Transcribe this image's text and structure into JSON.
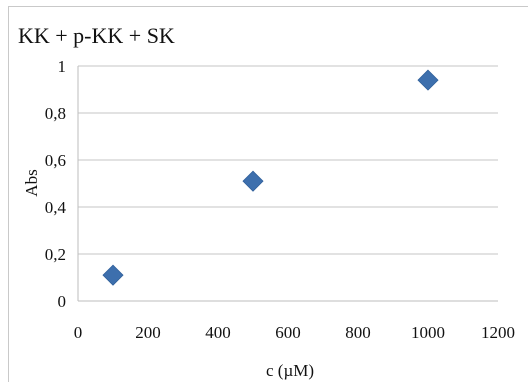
{
  "chart_data": {
    "type": "scatter",
    "title": "KK + p-KK + SK",
    "xlabel": "c (µM)",
    "ylabel": "Abs",
    "xlim": [
      0,
      1200
    ],
    "ylim": [
      0,
      1
    ],
    "xticks": [
      0,
      200,
      400,
      600,
      800,
      1000,
      1200
    ],
    "yticks": [
      0,
      0.2,
      0.4,
      0.6,
      0.8,
      1
    ],
    "xtick_labels": [
      "0",
      "200",
      "400",
      "600",
      "800",
      "1000",
      "1200"
    ],
    "ytick_labels": [
      "0",
      "0,2",
      "0,4",
      "0,6",
      "0,8",
      "1"
    ],
    "grid": "horizontal",
    "legend": "none",
    "marker": "diamond",
    "marker_color": "#3d6fad",
    "series": [
      {
        "x": [
          100,
          500,
          1000
        ],
        "y": [
          0.11,
          0.51,
          0.94
        ]
      }
    ]
  }
}
